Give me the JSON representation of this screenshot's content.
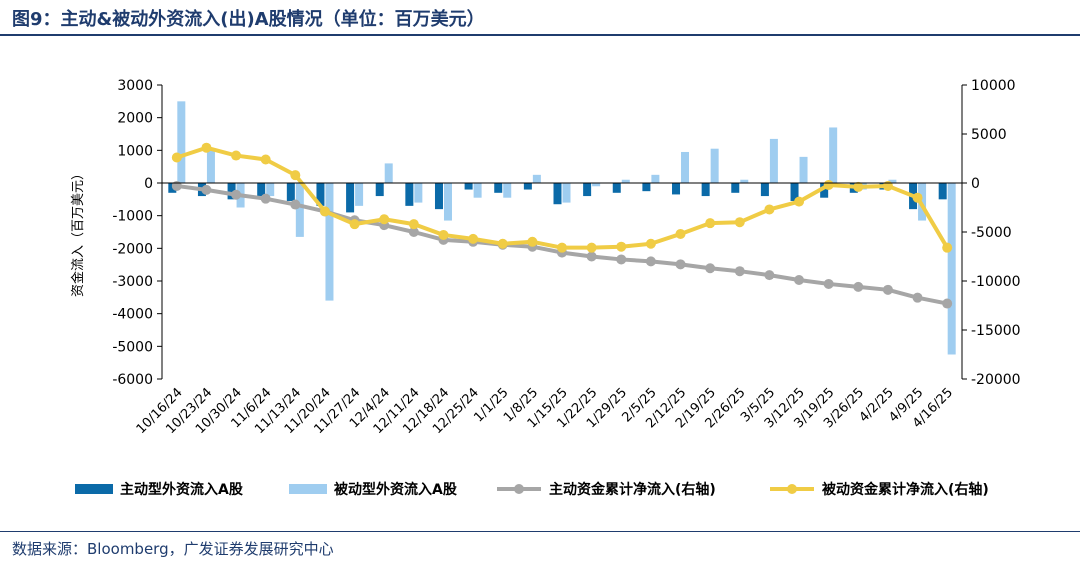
{
  "title": "图9：主动&被动外资流入(出)A股情况（单位：百万美元）",
  "source": "数据来源：Bloomberg，广发证券发展研究中心",
  "colors": {
    "active_bar": "#0b6aa8",
    "passive_bar": "#9fcdf0",
    "active_cum": "#a6a6a6",
    "passive_cum": "#f0cc45"
  },
  "chart_data": {
    "type": "bar",
    "title": "主动&被动外资流入(出)A股情况（单位：百万美元）",
    "ylabel": "资金流入（百万美元）",
    "y2label": "",
    "ylim": [
      -6000,
      3000
    ],
    "y2lim": [
      -20000,
      10000
    ],
    "yticks": [
      "3000",
      "2000",
      "1000",
      "0",
      "-1000",
      "-2000",
      "-3000",
      "-4000",
      "-5000",
      "-6000"
    ],
    "y2ticks": [
      "10000",
      "5000",
      "0",
      "-5000",
      "-10000",
      "-15000",
      "-20000"
    ],
    "categories": [
      "10/16/24",
      "10/23/24",
      "10/30/24",
      "11/6/24",
      "11/13/24",
      "11/20/24",
      "11/27/24",
      "12/4/24",
      "12/11/24",
      "12/18/24",
      "12/25/24",
      "1/1/25",
      "1/8/25",
      "1/15/25",
      "1/22/25",
      "1/29/25",
      "2/5/25",
      "2/12/25",
      "2/19/25",
      "2/26/25",
      "3/5/25",
      "3/12/25",
      "3/19/25",
      "3/26/25",
      "4/2/25",
      "4/9/25",
      "4/16/25"
    ],
    "series": [
      {
        "name": "主动型外资流入A股",
        "type": "bar",
        "axis": "left",
        "values": [
          -300,
          -400,
          -500,
          -400,
          -550,
          -700,
          -900,
          -400,
          -700,
          -800,
          -200,
          -300,
          -200,
          -650,
          -400,
          -300,
          -250,
          -350,
          -400,
          -300,
          -400,
          -550,
          -450,
          -300,
          -200,
          -800,
          -500
        ]
      },
      {
        "name": "被动型外资流入A股",
        "type": "bar",
        "axis": "left",
        "values": [
          2500,
          1000,
          -750,
          -400,
          -1650,
          -3600,
          -700,
          600,
          -600,
          -1150,
          -450,
          -450,
          250,
          -600,
          -100,
          100,
          250,
          950,
          1050,
          100,
          1350,
          800,
          1700,
          -200,
          100,
          -1150,
          -5250
        ]
      },
      {
        "name": "主动资金累计净流入(右轴)",
        "type": "line",
        "axis": "right",
        "values": [
          -300,
          -700,
          -1200,
          -1600,
          -2200,
          -2900,
          -3800,
          -4300,
          -5000,
          -5800,
          -6000,
          -6300,
          -6500,
          -7100,
          -7500,
          -7800,
          -8000,
          -8300,
          -8700,
          -9000,
          -9400,
          -9900,
          -10300,
          -10600,
          -10900,
          -11700,
          -12300
        ]
      },
      {
        "name": "被动资金累计净流入(右轴)",
        "type": "line",
        "axis": "right",
        "values": [
          2600,
          3600,
          2800,
          2400,
          800,
          -2900,
          -4200,
          -3700,
          -4200,
          -5300,
          -5700,
          -6200,
          -6000,
          -6600,
          -6600,
          -6500,
          -6200,
          -5200,
          -4100,
          -4000,
          -2700,
          -1900,
          -200,
          -400,
          -300,
          -1500,
          -6600
        ]
      }
    ],
    "legend": [
      "主动型外资流入A股",
      "被动型外资流入A股",
      "主动资金累计净流入(右轴)",
      "被动资金累计净流入(右轴)"
    ],
    "legend_position": "bottom"
  }
}
